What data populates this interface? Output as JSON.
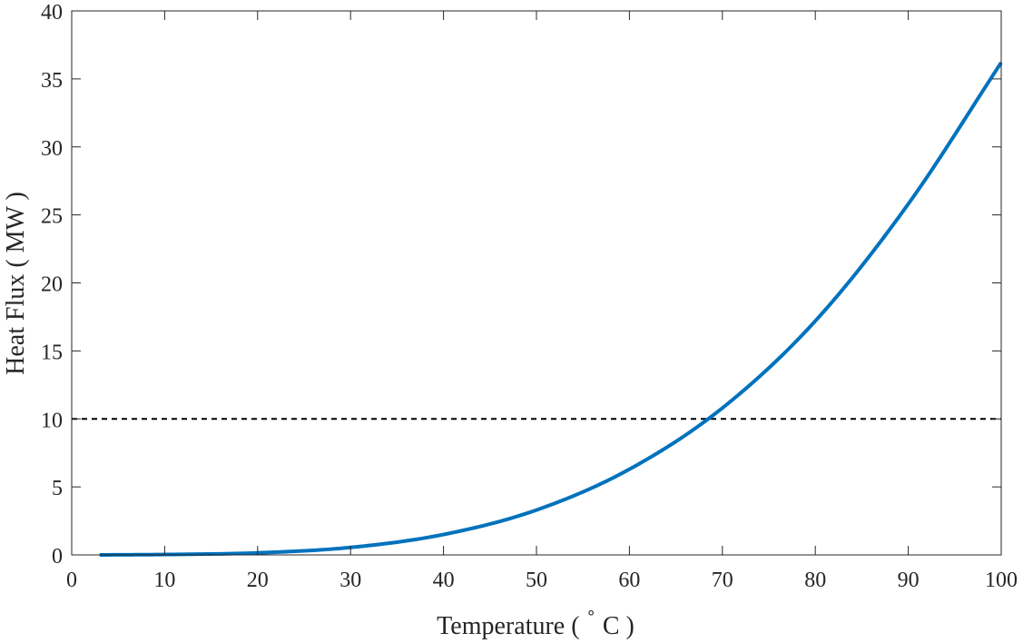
{
  "chart_data": {
    "type": "line",
    "xlabel_parts": [
      "Temperature ( ",
      "∘",
      " C )"
    ],
    "ylabel": "Heat Flux ( MW )",
    "xlim": [
      0,
      100
    ],
    "ylim": [
      0,
      40
    ],
    "xticks": [
      "0",
      "10",
      "20",
      "30",
      "40",
      "50",
      "60",
      "70",
      "80",
      "90",
      "100"
    ],
    "yticks": [
      "0",
      "5",
      "10",
      "15",
      "20",
      "25",
      "30",
      "35",
      "40"
    ],
    "grid": false,
    "series": [
      {
        "color": "#0072BD",
        "x": [
          3,
          10,
          20,
          30,
          40,
          50,
          60,
          70,
          80,
          90,
          100
        ],
        "y": [
          0.0,
          0.03,
          0.15,
          0.55,
          1.5,
          3.3,
          6.3,
          10.8,
          17.2,
          25.8,
          36.2
        ]
      }
    ],
    "reference_line": {
      "y": 10,
      "style": "dashed",
      "color": "#000000"
    }
  }
}
